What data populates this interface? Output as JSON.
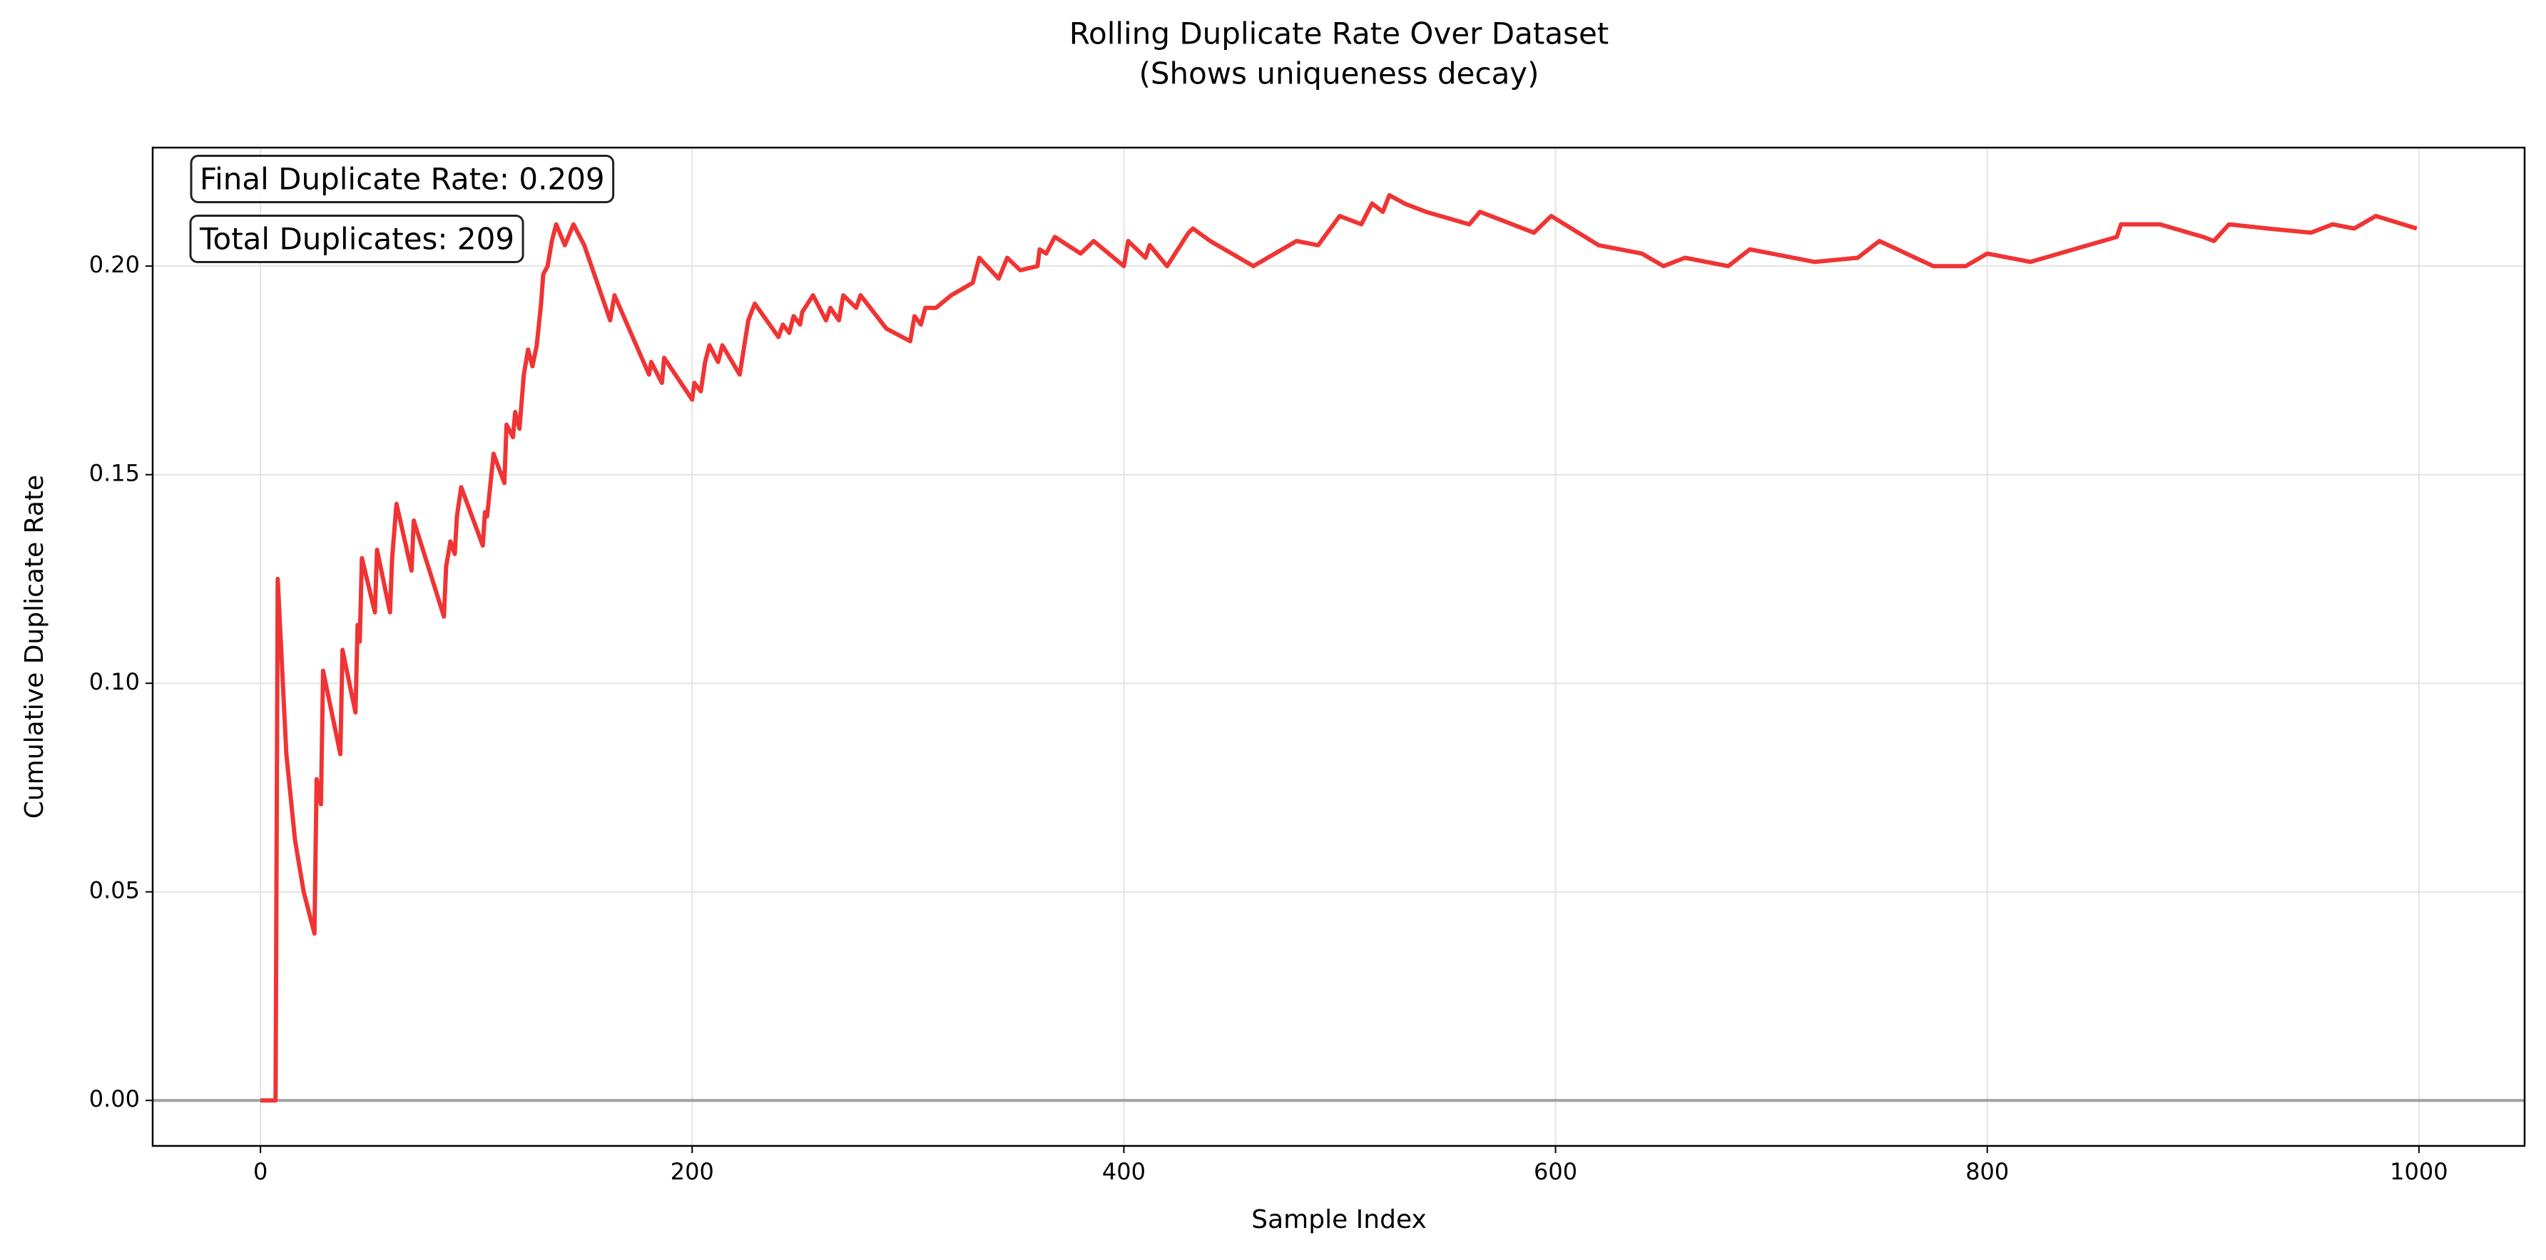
{
  "chart_data": {
    "type": "line",
    "title": "Rolling Duplicate Rate Over Dataset",
    "subtitle": "(Shows uniqueness decay)",
    "xlabel": "Sample Index",
    "ylabel": "Cumulative Duplicate Rate",
    "annotations": [
      "Final Duplicate Rate: 0.209",
      "Total Duplicates: 209"
    ],
    "color": "#f03434",
    "hline": 0,
    "hline_color": "#a0a0a0",
    "grid": true,
    "xlim": [
      -49.95,
      1048.95
    ],
    "ylim": [
      -0.0109,
      0.2284
    ],
    "xticks": [
      0,
      200,
      400,
      600,
      800,
      1000
    ],
    "yticks": [
      {
        "value": 0,
        "label": "0.00"
      },
      0.05,
      {
        "value": 0.1,
        "label": "0.10"
      },
      0.15,
      {
        "value": 0.2,
        "label": "0.20"
      }
    ],
    "x": [
      0,
      7,
      8,
      12,
      16,
      20,
      25,
      26,
      28,
      29,
      37,
      38,
      44,
      45,
      46,
      47,
      53,
      54,
      60,
      61,
      63,
      70,
      71,
      85,
      86,
      88,
      90,
      91,
      93,
      103,
      104,
      105,
      108,
      113,
      114,
      117,
      118,
      120,
      122,
      124,
      126,
      128,
      130,
      131,
      133,
      135,
      137,
      141,
      145,
      150,
      160,
      162,
      164,
      180,
      181,
      186,
      187,
      200,
      201,
      204,
      206,
      208,
      212,
      214,
      222,
      226,
      229,
      240,
      242,
      245,
      247,
      250,
      251,
      256,
      262,
      264,
      268,
      270,
      276,
      278,
      290,
      301,
      303,
      306,
      308,
      313,
      320,
      330,
      333,
      342,
      346,
      352,
      360,
      361,
      364,
      368,
      380,
      386,
      400,
      402,
      410,
      412,
      420,
      430,
      432,
      440,
      460,
      470,
      480,
      490,
      500,
      510,
      515,
      520,
      523,
      530,
      540,
      560,
      565,
      590,
      598,
      620,
      640,
      650,
      660,
      680,
      690,
      700,
      720,
      740,
      750,
      775,
      790,
      800,
      820,
      840,
      860,
      862,
      880,
      900,
      905,
      912,
      930,
      950,
      960,
      970,
      980,
      999
    ],
    "values": [
      0,
      0,
      0.125,
      0.083,
      0.0625,
      0.05,
      0.04,
      0.077,
      0.071,
      0.103,
      0.083,
      0.108,
      0.093,
      0.114,
      0.11,
      0.13,
      0.117,
      0.132,
      0.117,
      0.13,
      0.143,
      0.127,
      0.139,
      0.116,
      0.128,
      0.134,
      0.131,
      0.14,
      0.147,
      0.133,
      0.141,
      0.14,
      0.155,
      0.148,
      0.162,
      0.159,
      0.165,
      0.161,
      0.174,
      0.18,
      0.176,
      0.181,
      0.191,
      0.198,
      0.2,
      0.206,
      0.21,
      0.205,
      0.21,
      0.205,
      0.19,
      0.187,
      0.193,
      0.174,
      0.177,
      0.172,
      0.178,
      0.168,
      0.172,
      0.17,
      0.177,
      0.181,
      0.177,
      0.181,
      0.174,
      0.187,
      0.191,
      0.183,
      0.186,
      0.184,
      0.188,
      0.186,
      0.189,
      0.193,
      0.187,
      0.19,
      0.187,
      0.193,
      0.19,
      0.193,
      0.185,
      0.182,
      0.188,
      0.186,
      0.19,
      0.19,
      0.193,
      0.196,
      0.202,
      0.197,
      0.202,
      0.199,
      0.2,
      0.204,
      0.203,
      0.207,
      0.203,
      0.206,
      0.2,
      0.206,
      0.202,
      0.205,
      0.2,
      0.208,
      0.209,
      0.206,
      0.2,
      0.203,
      0.206,
      0.205,
      0.212,
      0.21,
      0.215,
      0.213,
      0.217,
      0.215,
      0.213,
      0.21,
      0.213,
      0.208,
      0.212,
      0.205,
      0.203,
      0.2,
      0.202,
      0.2,
      0.204,
      0.203,
      0.201,
      0.202,
      0.206,
      0.2,
      0.2,
      0.203,
      0.201,
      0.204,
      0.207,
      0.21,
      0.21,
      0.207,
      0.206,
      0.21,
      0.209,
      0.208,
      0.21,
      0.209,
      0.212,
      0.209
    ]
  }
}
